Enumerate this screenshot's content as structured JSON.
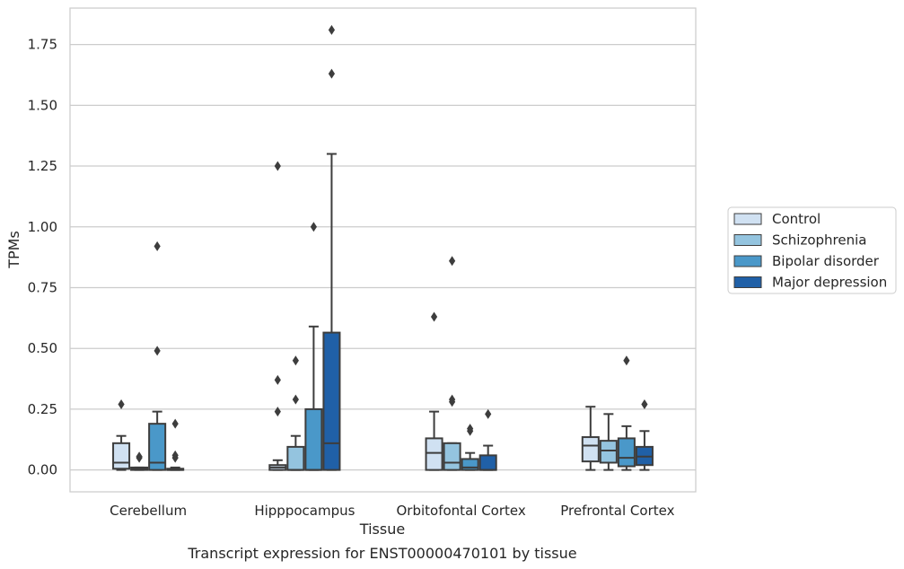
{
  "chart_data": {
    "type": "box",
    "xlabel": "Tissue",
    "ylabel": "TPMs",
    "caption": "Transcript expression for ENST00000470101 by tissue",
    "categories": [
      "Cerebellum",
      "Hipppocampus",
      "Orbitofontal Cortex",
      "Prefrontal Cortex"
    ],
    "ylim": [
      -0.09,
      1.9
    ],
    "yticks": [
      "0.00",
      "0.25",
      "0.50",
      "0.75",
      "1.00",
      "1.25",
      "1.50",
      "1.75"
    ],
    "grid": "horizontal",
    "legend_position": "right",
    "series": [
      {
        "name": "Control",
        "color": "#d0e1f2",
        "boxes": [
          {
            "whislo": 0.0,
            "q1": 0.005,
            "med": 0.03,
            "q3": 0.11,
            "whishi": 0.14,
            "fliers": [
              0.27
            ]
          },
          {
            "whislo": 0.0,
            "q1": 0.0,
            "med": 0.01,
            "q3": 0.02,
            "whishi": 0.04,
            "fliers": [
              0.24,
              0.37,
              1.25
            ]
          },
          {
            "whislo": 0.0,
            "q1": 0.0,
            "med": 0.07,
            "q3": 0.13,
            "whishi": 0.24,
            "fliers": [
              0.63
            ]
          },
          {
            "whislo": 0.0,
            "q1": 0.035,
            "med": 0.1,
            "q3": 0.135,
            "whishi": 0.26,
            "fliers": []
          }
        ]
      },
      {
        "name": "Schizophrenia",
        "color": "#94c4df",
        "boxes": [
          {
            "whislo": 0.0,
            "q1": 0.0,
            "med": 0.005,
            "q3": 0.01,
            "whishi": 0.01,
            "fliers": [
              0.05,
              0.055
            ]
          },
          {
            "whislo": 0.0,
            "q1": 0.0,
            "med": 0.0,
            "q3": 0.095,
            "whishi": 0.14,
            "fliers": [
              0.29,
              0.45
            ]
          },
          {
            "whislo": 0.0,
            "q1": 0.0,
            "med": 0.03,
            "q3": 0.11,
            "whishi": 0.11,
            "fliers": [
              0.28,
              0.29,
              0.86
            ]
          },
          {
            "whislo": 0.0,
            "q1": 0.03,
            "med": 0.08,
            "q3": 0.12,
            "whishi": 0.23,
            "fliers": []
          }
        ]
      },
      {
        "name": "Bipolar disorder",
        "color": "#4a98c9",
        "boxes": [
          {
            "whislo": 0.0,
            "q1": 0.0,
            "med": 0.03,
            "q3": 0.19,
            "whishi": 0.24,
            "fliers": [
              0.49,
              0.92
            ]
          },
          {
            "whislo": 0.0,
            "q1": 0.0,
            "med": 0.0,
            "q3": 0.25,
            "whishi": 0.59,
            "fliers": [
              1.0
            ]
          },
          {
            "whislo": 0.0,
            "q1": 0.0,
            "med": 0.01,
            "q3": 0.045,
            "whishi": 0.07,
            "fliers": [
              0.16,
              0.17
            ]
          },
          {
            "whislo": 0.0,
            "q1": 0.015,
            "med": 0.05,
            "q3": 0.13,
            "whishi": 0.18,
            "fliers": [
              0.45
            ]
          }
        ]
      },
      {
        "name": "Major depression",
        "color": "#2060a7",
        "boxes": [
          {
            "whislo": 0.0,
            "q1": 0.0,
            "med": 0.0,
            "q3": 0.005,
            "whishi": 0.01,
            "fliers": [
              0.05,
              0.06,
              0.19
            ]
          },
          {
            "whislo": 0.0,
            "q1": 0.0,
            "med": 0.11,
            "q3": 0.565,
            "whishi": 1.3,
            "fliers": [
              1.63,
              1.81
            ]
          },
          {
            "whislo": 0.0,
            "q1": 0.0,
            "med": 0.0,
            "q3": 0.06,
            "whishi": 0.1,
            "fliers": [
              0.23
            ]
          },
          {
            "whislo": 0.0,
            "q1": 0.02,
            "med": 0.055,
            "q3": 0.095,
            "whishi": 0.16,
            "fliers": [
              0.27
            ]
          }
        ]
      }
    ]
  }
}
